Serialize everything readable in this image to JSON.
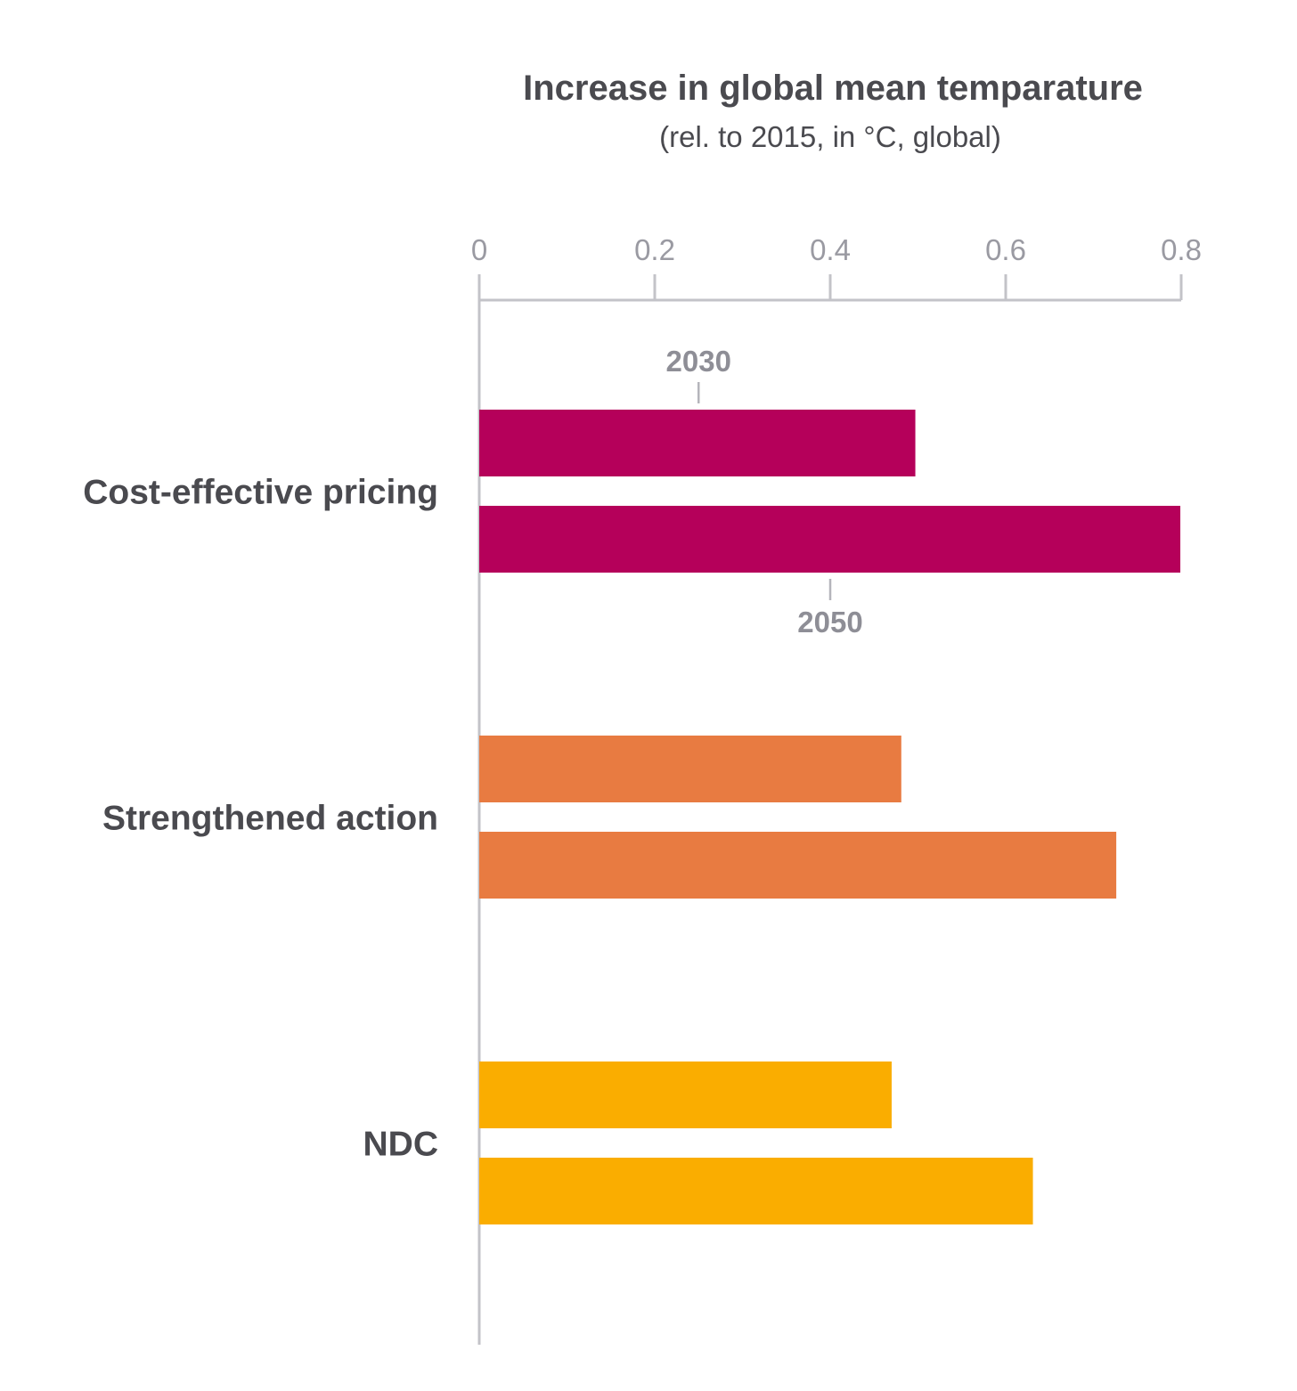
{
  "chart_data": {
    "type": "bar",
    "orientation": "horizontal",
    "title": "Increase in global mean temparature",
    "subtitle": "(rel. to 2015, in °C, global)",
    "xlabel": "",
    "ylabel": "",
    "xlim": [
      0,
      0.8
    ],
    "ticks": [
      "0",
      "0.2",
      "0.4",
      "0.6",
      "0.8"
    ],
    "tick_values": [
      0,
      0.2,
      0.4,
      0.6,
      0.8
    ],
    "grid": false,
    "legend": "none",
    "categories": [
      "Cost-effective pricing",
      "Strengthened action",
      "NDC"
    ],
    "colors": [
      "#b5005a",
      "#e87b41",
      "#faad00"
    ],
    "series": [
      {
        "name": "2030",
        "values": [
          0.497,
          0.481,
          0.47
        ]
      },
      {
        "name": "2050",
        "values": [
          0.799,
          0.726,
          0.631
        ]
      }
    ],
    "annotations": [
      {
        "text": "2030",
        "series": "2030",
        "category": "Cost-effective pricing",
        "at_value": 0.25,
        "placement": "above"
      },
      {
        "text": "2050",
        "series": "2050",
        "category": "Cost-effective pricing",
        "at_value": 0.4,
        "placement": "below"
      }
    ]
  }
}
